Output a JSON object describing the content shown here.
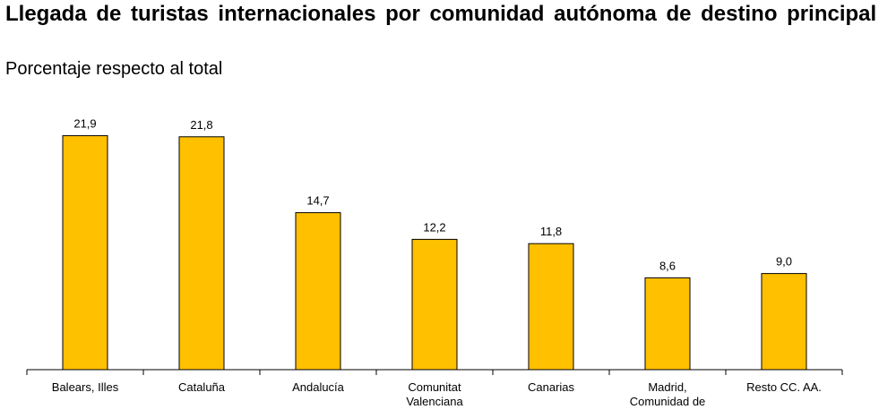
{
  "title": "Llegada de turistas internacionales por comunidad autónoma de destino principal",
  "subtitle": "Porcentaje respecto al total",
  "colors": {
    "bar": "#FFC000",
    "bar_stroke": "#000000",
    "axis": "#000000",
    "background": "#ffffff"
  },
  "chart_data": {
    "type": "bar",
    "title": "Llegada de turistas internacionales por comunidad autónoma de destino principal",
    "subtitle": "Porcentaje respecto al total",
    "categories": [
      [
        "Balears, Illes"
      ],
      [
        "Cataluña"
      ],
      [
        "Andalucía"
      ],
      [
        "Comunitat",
        "Valenciana"
      ],
      [
        "Canarias"
      ],
      [
        "Madrid,",
        "Comunidad de"
      ],
      [
        "Resto CC. AA."
      ]
    ],
    "values": [
      21.9,
      21.8,
      14.7,
      12.2,
      11.8,
      8.6,
      9.0
    ],
    "data_labels": [
      "21,9",
      "21,8",
      "14,7",
      "12,2",
      "11,8",
      "8,6",
      "9,0"
    ],
    "xlabel": "",
    "ylabel": "",
    "ylim": [
      0,
      24.3
    ],
    "grid": false,
    "legend": "none"
  }
}
